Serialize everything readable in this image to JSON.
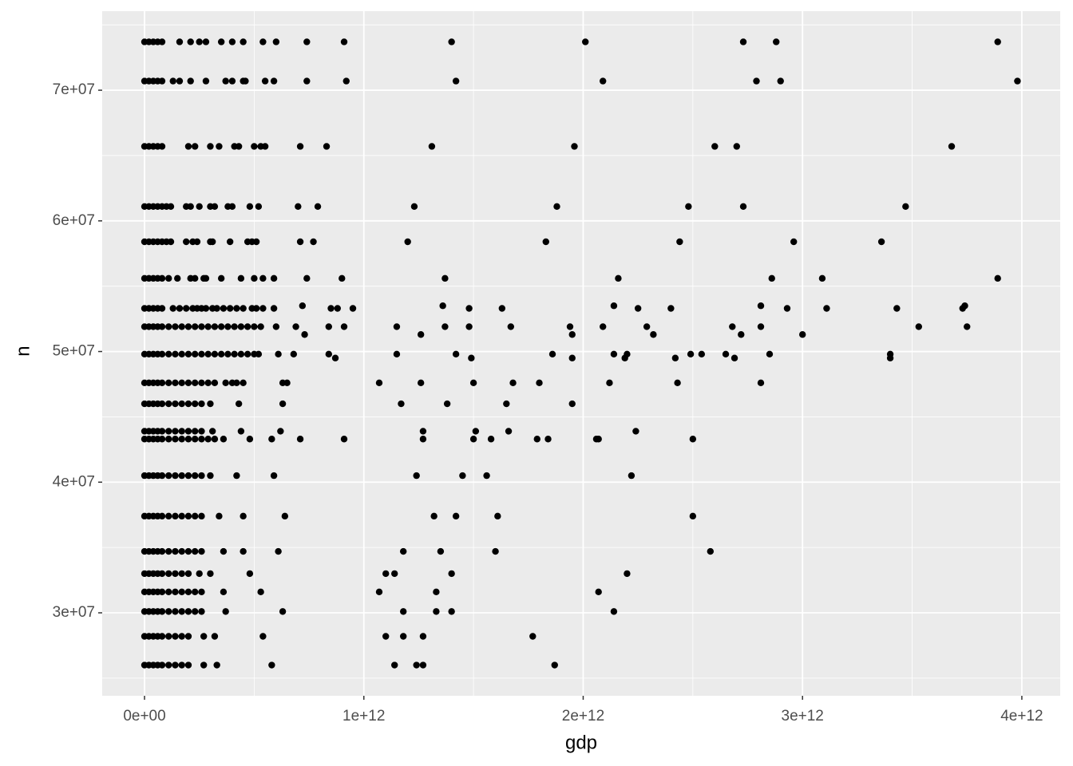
{
  "chart_data": {
    "type": "scatter",
    "x_label": "gdp",
    "y_label": "n",
    "xlim": [
      -193000000000.0,
      4175000000000.0
    ],
    "ylim": [
      23650000.0,
      76050000.0
    ],
    "xticks": [
      {
        "value": 0,
        "label": "0e+00"
      },
      {
        "value": 1000000000000.0,
        "label": "1e+12"
      },
      {
        "value": 2000000000000.0,
        "label": "2e+12"
      },
      {
        "value": 3000000000000.0,
        "label": "3e+12"
      },
      {
        "value": 4000000000000.0,
        "label": "4e+12"
      }
    ],
    "yticks": [
      {
        "value": 30000000.0,
        "label": "3e+07"
      },
      {
        "value": 40000000.0,
        "label": "4e+07"
      },
      {
        "value": 50000000.0,
        "label": "5e+07"
      },
      {
        "value": 60000000.0,
        "label": "6e+07"
      },
      {
        "value": 70000000.0,
        "label": "7e+07"
      }
    ],
    "grid": true,
    "color": "#000000",
    "x": [
      0,
      20000000000.0,
      40000000000.0,
      60000000000.0,
      80000000000.0,
      160000000000.0,
      210000000000.0,
      250000000000.0,
      280000000000.0,
      350000000000.0,
      400000000000.0,
      450000000000.0,
      540000000000.0,
      600000000000.0,
      740000000000.0,
      910000000000.0,
      1400000000000.0,
      2010000000000.0,
      2730000000000.0,
      2880000000000.0,
      3890000000000.0,
      0,
      20000000000.0,
      40000000000.0,
      60000000000.0,
      80000000000.0,
      130000000000.0,
      160000000000.0,
      210000000000.0,
      280000000000.0,
      370000000000.0,
      400000000000.0,
      450000000000.0,
      460000000000.0,
      550000000000.0,
      590000000000.0,
      740000000000.0,
      920000000000.0,
      1420000000000.0,
      2090000000000.0,
      2790000000000.0,
      2900000000000.0,
      3980000000000.0,
      0,
      20000000000.0,
      40000000000.0,
      60000000000.0,
      80000000000.0,
      200000000000.0,
      230000000000.0,
      300000000000.0,
      340000000000.0,
      410000000000.0,
      430000000000.0,
      500000000000.0,
      530000000000.0,
      550000000000.0,
      710000000000.0,
      830000000000.0,
      1310000000000.0,
      1960000000000.0,
      2600000000000.0,
      2700000000000.0,
      3680000000000.0,
      0,
      20000000000.0,
      40000000000.0,
      60000000000.0,
      80000000000.0,
      100000000000.0,
      120000000000.0,
      190000000000.0,
      210000000000.0,
      250000000000.0,
      300000000000.0,
      320000000000.0,
      380000000000.0,
      400000000000.0,
      480000000000.0,
      520000000000.0,
      700000000000.0,
      790000000000.0,
      1230000000000.0,
      1880000000000.0,
      2480000000000.0,
      2730000000000.0,
      3470000000000.0,
      0,
      20000000000.0,
      40000000000.0,
      60000000000.0,
      80000000000.0,
      100000000000.0,
      120000000000.0,
      190000000000.0,
      220000000000.0,
      240000000000.0,
      300000000000.0,
      310000000000.0,
      390000000000.0,
      470000000000.0,
      490000000000.0,
      510000000000.0,
      710000000000.0,
      770000000000.0,
      1200000000000.0,
      1830000000000.0,
      2440000000000.0,
      2960000000000.0,
      3360000000000.0,
      0,
      20000000000.0,
      40000000000.0,
      60000000000.0,
      80000000000.0,
      110000000000.0,
      150000000000.0,
      210000000000.0,
      230000000000.0,
      270000000000.0,
      280000000000.0,
      350000000000.0,
      440000000000.0,
      500000000000.0,
      540000000000.0,
      590000000000.0,
      740000000000.0,
      900000000000.0,
      1370000000000.0,
      2160000000000.0,
      2860000000000.0,
      3090000000000.0,
      3890000000000.0,
      0,
      20000000000.0,
      40000000000.0,
      60000000000.0,
      80000000000.0,
      130000000000.0,
      160000000000.0,
      190000000000.0,
      220000000000.0,
      240000000000.0,
      260000000000.0,
      280000000000.0,
      310000000000.0,
      330000000000.0,
      360000000000.0,
      390000000000.0,
      420000000000.0,
      450000000000.0,
      490000000000.0,
      510000000000.0,
      540000000000.0,
      590000000000.0,
      850000000000.0,
      880000000000.0,
      950000000000.0,
      1480000000000.0,
      1630000000000.0,
      2250000000000.0,
      2400000000000.0,
      2930000000000.0,
      3110000000000.0,
      3430000000000.0,
      3730000000000.0,
      720000000000.0,
      1360000000000.0,
      2140000000000.0,
      2810000000000.0,
      3740000000000.0,
      0,
      20000000000.0,
      40000000000.0,
      60000000000.0,
      80000000000.0,
      110000000000.0,
      140000000000.0,
      170000000000.0,
      200000000000.0,
      230000000000.0,
      260000000000.0,
      290000000000.0,
      320000000000.0,
      350000000000.0,
      380000000000.0,
      410000000000.0,
      440000000000.0,
      470000000000.0,
      500000000000.0,
      530000000000.0,
      600000000000.0,
      690000000000.0,
      840000000000.0,
      910000000000.0,
      1150000000000.0,
      1370000000000.0,
      1480000000000.0,
      1670000000000.0,
      1940000000000.0,
      2090000000000.0,
      2290000000000.0,
      2680000000000.0,
      2810000000000.0,
      3530000000000.0,
      3750000000000.0,
      730000000000.0,
      1260000000000.0,
      1950000000000.0,
      2320000000000.0,
      2720000000000.0,
      3000000000000.0,
      0,
      20000000000.0,
      40000000000.0,
      60000000000.0,
      80000000000.0,
      110000000000.0,
      140000000000.0,
      170000000000.0,
      200000000000.0,
      230000000000.0,
      260000000000.0,
      290000000000.0,
      320000000000.0,
      350000000000.0,
      380000000000.0,
      410000000000.0,
      440000000000.0,
      470000000000.0,
      500000000000.0,
      520000000000.0,
      610000000000.0,
      680000000000.0,
      840000000000.0,
      1150000000000.0,
      1420000000000.0,
      1860000000000.0,
      2140000000000.0,
      2200000000000.0,
      2490000000000.0,
      2540000000000.0,
      2650000000000.0,
      2850000000000.0,
      3400000000000.0,
      870000000000.0,
      1490000000000.0,
      1950000000000.0,
      2190000000000.0,
      2420000000000.0,
      2690000000000.0,
      3400000000000.0,
      0,
      20000000000.0,
      40000000000.0,
      60000000000.0,
      80000000000.0,
      110000000000.0,
      140000000000.0,
      170000000000.0,
      200000000000.0,
      230000000000.0,
      260000000000.0,
      290000000000.0,
      320000000000.0,
      370000000000.0,
      400000000000.0,
      420000000000.0,
      450000000000.0,
      630000000000.0,
      650000000000.0,
      1070000000000.0,
      1260000000000.0,
      1500000000000.0,
      1680000000000.0,
      1800000000000.0,
      2120000000000.0,
      2430000000000.0,
      2810000000000.0,
      0,
      20000000000.0,
      40000000000.0,
      60000000000.0,
      80000000000.0,
      110000000000.0,
      140000000000.0,
      170000000000.0,
      200000000000.0,
      230000000000.0,
      260000000000.0,
      300000000000.0,
      430000000000.0,
      630000000000.0,
      1170000000000.0,
      1380000000000.0,
      1650000000000.0,
      1950000000000.0,
      0,
      20000000000.0,
      40000000000.0,
      60000000000.0,
      80000000000.0,
      110000000000.0,
      140000000000.0,
      170000000000.0,
      200000000000.0,
      230000000000.0,
      260000000000.0,
      310000000000.0,
      440000000000.0,
      620000000000.0,
      1270000000000.0,
      1510000000000.0,
      1660000000000.0,
      2240000000000.0,
      0,
      20000000000.0,
      40000000000.0,
      60000000000.0,
      80000000000.0,
      110000000000.0,
      140000000000.0,
      170000000000.0,
      200000000000.0,
      230000000000.0,
      260000000000.0,
      290000000000.0,
      320000000000.0,
      360000000000.0,
      480000000000.0,
      580000000000.0,
      710000000000.0,
      910000000000.0,
      1270000000000.0,
      1500000000000.0,
      1580000000000.0,
      1790000000000.0,
      1840000000000.0,
      2060000000000.0,
      2070000000000.0,
      2500000000000.0,
      0,
      20000000000.0,
      40000000000.0,
      60000000000.0,
      80000000000.0,
      110000000000.0,
      140000000000.0,
      170000000000.0,
      200000000000.0,
      230000000000.0,
      260000000000.0,
      300000000000.0,
      420000000000.0,
      590000000000.0,
      1240000000000.0,
      1450000000000.0,
      1560000000000.0,
      2220000000000.0,
      0,
      20000000000.0,
      40000000000.0,
      60000000000.0,
      80000000000.0,
      110000000000.0,
      140000000000.0,
      170000000000.0,
      200000000000.0,
      230000000000.0,
      260000000000.0,
      340000000000.0,
      450000000000.0,
      640000000000.0,
      1320000000000.0,
      1420000000000.0,
      1610000000000.0,
      2500000000000.0,
      0,
      20000000000.0,
      40000000000.0,
      60000000000.0,
      80000000000.0,
      110000000000.0,
      140000000000.0,
      170000000000.0,
      200000000000.0,
      230000000000.0,
      260000000000.0,
      360000000000.0,
      450000000000.0,
      610000000000.0,
      1180000000000.0,
      1350000000000.0,
      1600000000000.0,
      2580000000000.0,
      0,
      20000000000.0,
      40000000000.0,
      60000000000.0,
      80000000000.0,
      110000000000.0,
      140000000000.0,
      170000000000.0,
      200000000000.0,
      250000000000.0,
      300000000000.0,
      480000000000.0,
      1100000000000.0,
      1140000000000.0,
      1400000000000.0,
      2200000000000.0,
      0,
      20000000000.0,
      40000000000.0,
      60000000000.0,
      80000000000.0,
      110000000000.0,
      140000000000.0,
      170000000000.0,
      200000000000.0,
      230000000000.0,
      260000000000.0,
      360000000000.0,
      530000000000.0,
      1070000000000.0,
      1330000000000.0,
      2070000000000.0,
      0,
      20000000000.0,
      40000000000.0,
      60000000000.0,
      80000000000.0,
      110000000000.0,
      140000000000.0,
      170000000000.0,
      200000000000.0,
      230000000000.0,
      260000000000.0,
      370000000000.0,
      630000000000.0,
      1180000000000.0,
      1330000000000.0,
      1400000000000.0,
      2140000000000.0,
      0,
      20000000000.0,
      40000000000.0,
      60000000000.0,
      80000000000.0,
      110000000000.0,
      140000000000.0,
      170000000000.0,
      200000000000.0,
      270000000000.0,
      320000000000.0,
      540000000000.0,
      1100000000000.0,
      1180000000000.0,
      1270000000000.0,
      1770000000000.0,
      0,
      20000000000.0,
      40000000000.0,
      60000000000.0,
      80000000000.0,
      110000000000.0,
      140000000000.0,
      170000000000.0,
      200000000000.0,
      270000000000.0,
      330000000000.0,
      580000000000.0,
      1140000000000.0,
      1240000000000.0,
      1270000000000.0,
      1870000000000.0
    ],
    "values": [
      73700000.0,
      73700000.0,
      73700000.0,
      73700000.0,
      73700000.0,
      73700000.0,
      73700000.0,
      73700000.0,
      73700000.0,
      73700000.0,
      73700000.0,
      73700000.0,
      73700000.0,
      73700000.0,
      73700000.0,
      73700000.0,
      73700000.0,
      73700000.0,
      73700000.0,
      73700000.0,
      73700000.0,
      70700000.0,
      70700000.0,
      70700000.0,
      70700000.0,
      70700000.0,
      70700000.0,
      70700000.0,
      70700000.0,
      70700000.0,
      70700000.0,
      70700000.0,
      70700000.0,
      70700000.0,
      70700000.0,
      70700000.0,
      70700000.0,
      70700000.0,
      70700000.0,
      70700000.0,
      70700000.0,
      70700000.0,
      70700000.0,
      65700000.0,
      65700000.0,
      65700000.0,
      65700000.0,
      65700000.0,
      65700000.0,
      65700000.0,
      65700000.0,
      65700000.0,
      65700000.0,
      65700000.0,
      65700000.0,
      65700000.0,
      65700000.0,
      65700000.0,
      65700000.0,
      65700000.0,
      65700000.0,
      65700000.0,
      65700000.0,
      65700000.0,
      61100000.0,
      61100000.0,
      61100000.0,
      61100000.0,
      61100000.0,
      61100000.0,
      61100000.0,
      61100000.0,
      61100000.0,
      61100000.0,
      61100000.0,
      61100000.0,
      61100000.0,
      61100000.0,
      61100000.0,
      61100000.0,
      61100000.0,
      61100000.0,
      61100000.0,
      61100000.0,
      61100000.0,
      61100000.0,
      61100000.0,
      58400000.0,
      58400000.0,
      58400000.0,
      58400000.0,
      58400000.0,
      58400000.0,
      58400000.0,
      58400000.0,
      58400000.0,
      58400000.0,
      58400000.0,
      58400000.0,
      58400000.0,
      58400000.0,
      58400000.0,
      58400000.0,
      58400000.0,
      58400000.0,
      58400000.0,
      58400000.0,
      58400000.0,
      58400000.0,
      58400000.0,
      55600000.0,
      55600000.0,
      55600000.0,
      55600000.0,
      55600000.0,
      55600000.0,
      55600000.0,
      55600000.0,
      55600000.0,
      55600000.0,
      55600000.0,
      55600000.0,
      55600000.0,
      55600000.0,
      55600000.0,
      55600000.0,
      55600000.0,
      55600000.0,
      55600000.0,
      55600000.0,
      55600000.0,
      55600000.0,
      55600000.0,
      53300000.0,
      53300000.0,
      53300000.0,
      53300000.0,
      53300000.0,
      53300000.0,
      53300000.0,
      53300000.0,
      53300000.0,
      53300000.0,
      53300000.0,
      53300000.0,
      53300000.0,
      53300000.0,
      53300000.0,
      53300000.0,
      53300000.0,
      53300000.0,
      53300000.0,
      53300000.0,
      53300000.0,
      53300000.0,
      53300000.0,
      53300000.0,
      53300000.0,
      53300000.0,
      53300000.0,
      53300000.0,
      53300000.0,
      53300000.0,
      53300000.0,
      53300000.0,
      53300000.0,
      53500000.0,
      53500000.0,
      53500000.0,
      53500000.0,
      53500000.0,
      51900000.0,
      51900000.0,
      51900000.0,
      51900000.0,
      51900000.0,
      51900000.0,
      51900000.0,
      51900000.0,
      51900000.0,
      51900000.0,
      51900000.0,
      51900000.0,
      51900000.0,
      51900000.0,
      51900000.0,
      51900000.0,
      51900000.0,
      51900000.0,
      51900000.0,
      51900000.0,
      51900000.0,
      51900000.0,
      51900000.0,
      51900000.0,
      51900000.0,
      51900000.0,
      51900000.0,
      51900000.0,
      51900000.0,
      51900000.0,
      51900000.0,
      51900000.0,
      51900000.0,
      51900000.0,
      51900000.0,
      51300000.0,
      51300000.0,
      51300000.0,
      51300000.0,
      51300000.0,
      51300000.0,
      49800000.0,
      49800000.0,
      49800000.0,
      49800000.0,
      49800000.0,
      49800000.0,
      49800000.0,
      49800000.0,
      49800000.0,
      49800000.0,
      49800000.0,
      49800000.0,
      49800000.0,
      49800000.0,
      49800000.0,
      49800000.0,
      49800000.0,
      49800000.0,
      49800000.0,
      49800000.0,
      49800000.0,
      49800000.0,
      49800000.0,
      49800000.0,
      49800000.0,
      49800000.0,
      49800000.0,
      49800000.0,
      49800000.0,
      49800000.0,
      49800000.0,
      49800000.0,
      49800000.0,
      49500000.0,
      49500000.0,
      49500000.0,
      49500000.0,
      49500000.0,
      49500000.0,
      49500000.0,
      47600000.0,
      47600000.0,
      47600000.0,
      47600000.0,
      47600000.0,
      47600000.0,
      47600000.0,
      47600000.0,
      47600000.0,
      47600000.0,
      47600000.0,
      47600000.0,
      47600000.0,
      47600000.0,
      47600000.0,
      47600000.0,
      47600000.0,
      47600000.0,
      47600000.0,
      47600000.0,
      47600000.0,
      47600000.0,
      47600000.0,
      47600000.0,
      47600000.0,
      47600000.0,
      47600000.0,
      46000000.0,
      46000000.0,
      46000000.0,
      46000000.0,
      46000000.0,
      46000000.0,
      46000000.0,
      46000000.0,
      46000000.0,
      46000000.0,
      46000000.0,
      46000000.0,
      46000000.0,
      46000000.0,
      46000000.0,
      46000000.0,
      46000000.0,
      46000000.0,
      43900000.0,
      43900000.0,
      43900000.0,
      43900000.0,
      43900000.0,
      43900000.0,
      43900000.0,
      43900000.0,
      43900000.0,
      43900000.0,
      43900000.0,
      43900000.0,
      43900000.0,
      43900000.0,
      43900000.0,
      43900000.0,
      43900000.0,
      43900000.0,
      43300000.0,
      43300000.0,
      43300000.0,
      43300000.0,
      43300000.0,
      43300000.0,
      43300000.0,
      43300000.0,
      43300000.0,
      43300000.0,
      43300000.0,
      43300000.0,
      43300000.0,
      43300000.0,
      43300000.0,
      43300000.0,
      43300000.0,
      43300000.0,
      43300000.0,
      43300000.0,
      43300000.0,
      43300000.0,
      43300000.0,
      43300000.0,
      43300000.0,
      43300000.0,
      40500000.0,
      40500000.0,
      40500000.0,
      40500000.0,
      40500000.0,
      40500000.0,
      40500000.0,
      40500000.0,
      40500000.0,
      40500000.0,
      40500000.0,
      40500000.0,
      40500000.0,
      40500000.0,
      40500000.0,
      40500000.0,
      40500000.0,
      40500000.0,
      37400000.0,
      37400000.0,
      37400000.0,
      37400000.0,
      37400000.0,
      37400000.0,
      37400000.0,
      37400000.0,
      37400000.0,
      37400000.0,
      37400000.0,
      37400000.0,
      37400000.0,
      37400000.0,
      37400000.0,
      37400000.0,
      37400000.0,
      37400000.0,
      34700000.0,
      34700000.0,
      34700000.0,
      34700000.0,
      34700000.0,
      34700000.0,
      34700000.0,
      34700000.0,
      34700000.0,
      34700000.0,
      34700000.0,
      34700000.0,
      34700000.0,
      34700000.0,
      34700000.0,
      34700000.0,
      34700000.0,
      34700000.0,
      33000000.0,
      33000000.0,
      33000000.0,
      33000000.0,
      33000000.0,
      33000000.0,
      33000000.0,
      33000000.0,
      33000000.0,
      33000000.0,
      33000000.0,
      33000000.0,
      33000000.0,
      33000000.0,
      33000000.0,
      33000000.0,
      31600000.0,
      31600000.0,
      31600000.0,
      31600000.0,
      31600000.0,
      31600000.0,
      31600000.0,
      31600000.0,
      31600000.0,
      31600000.0,
      31600000.0,
      31600000.0,
      31600000.0,
      31600000.0,
      31600000.0,
      31600000.0,
      30100000.0,
      30100000.0,
      30100000.0,
      30100000.0,
      30100000.0,
      30100000.0,
      30100000.0,
      30100000.0,
      30100000.0,
      30100000.0,
      30100000.0,
      30100000.0,
      30100000.0,
      30100000.0,
      30100000.0,
      30100000.0,
      30100000.0,
      28200000.0,
      28200000.0,
      28200000.0,
      28200000.0,
      28200000.0,
      28200000.0,
      28200000.0,
      28200000.0,
      28200000.0,
      28200000.0,
      28200000.0,
      28200000.0,
      28200000.0,
      28200000.0,
      28200000.0,
      28200000.0,
      26000000.0,
      26000000.0,
      26000000.0,
      26000000.0,
      26000000.0,
      26000000.0,
      26000000.0,
      26000000.0,
      26000000.0,
      26000000.0,
      26000000.0,
      26000000.0,
      26000000.0,
      26000000.0,
      26000000.0,
      26000000.0
    ]
  }
}
